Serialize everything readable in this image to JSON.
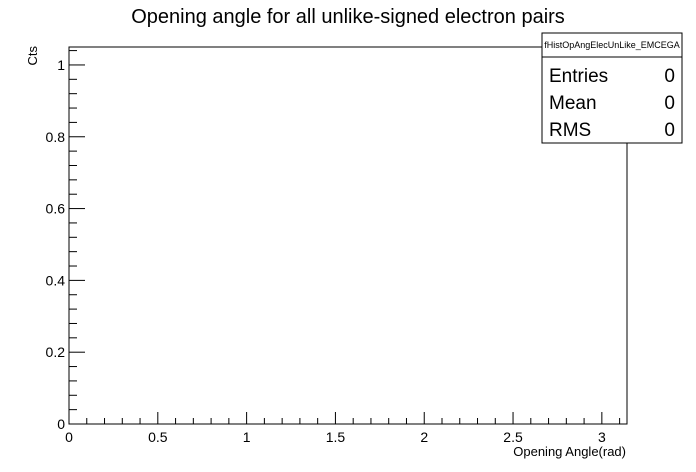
{
  "chart_data": {
    "type": "histogram",
    "title": "Opening angle for all unlike-signed electron pairs",
    "xlabel": "Opening Angle(rad)",
    "ylabel": "Cts",
    "xlim": [
      0,
      3.14159
    ],
    "ylim": [
      0,
      1.05
    ],
    "x_ticks": [
      "0",
      "0.5",
      "1",
      "1.5",
      "2",
      "2.5",
      "3"
    ],
    "y_ticks": [
      "0",
      "0.2",
      "0.4",
      "0.6",
      "0.8",
      "1"
    ],
    "series": [],
    "grid": false,
    "stats_box": {
      "name": "fHistOpAngElecUnLike_EMCEGA",
      "rows": [
        {
          "label": "Entries",
          "value": "0"
        },
        {
          "label": "Mean",
          "value": "0"
        },
        {
          "label": "RMS",
          "value": "0"
        }
      ],
      "placement": "top-right"
    }
  }
}
